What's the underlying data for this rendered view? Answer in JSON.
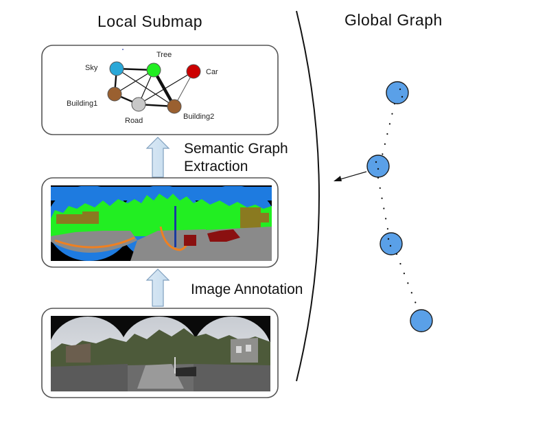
{
  "titles": {
    "local": "Local Submap",
    "global": "Global Graph"
  },
  "captions": {
    "extraction_line1": "Semantic Graph",
    "extraction_line2": "Extraction",
    "annotation": "Image Annotation"
  },
  "semantic_graph": {
    "nodes": [
      {
        "id": "sky",
        "label": "Sky",
        "color": "#2aa8d8"
      },
      {
        "id": "tree",
        "label": "Tree",
        "color": "#22ee22"
      },
      {
        "id": "car",
        "label": "Car",
        "color": "#cc0000"
      },
      {
        "id": "building1",
        "label": "Building1",
        "color": "#9a6030"
      },
      {
        "id": "road",
        "label": "Road",
        "color": "#c8c8c8"
      },
      {
        "id": "building2",
        "label": "Building2",
        "color": "#9a6030"
      }
    ]
  },
  "segmentation_colors": {
    "sky": "#1e7be0",
    "vegetation": "#22ee22",
    "road": "#8a8a8a",
    "building": "#8a7a20",
    "car": "#8a1010",
    "lane": "#f08020",
    "pole": "#1a3aa0",
    "background": "#000000"
  },
  "global_graph": {
    "node_color": "#5aa0e8",
    "node_count": 4
  }
}
